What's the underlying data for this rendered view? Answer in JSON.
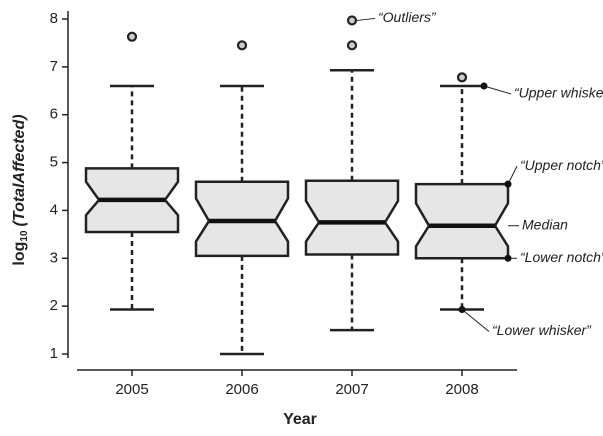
{
  "chart_data": {
    "type": "boxplot",
    "x_label": "Year",
    "y_label": {
      "prefix": "log",
      "subscript": "10",
      "text": "(TotalAffected)"
    },
    "categories": [
      "2005",
      "2006",
      "2007",
      "2008"
    ],
    "boxes": [
      {
        "whisker_low": 1.93,
        "q1": 3.55,
        "notch_low": 3.9,
        "median": 4.22,
        "notch_high": 4.6,
        "q3": 4.88,
        "whisker_high": 6.6,
        "outliers": [
          7.63
        ]
      },
      {
        "whisker_low": 1.0,
        "q1": 3.05,
        "notch_low": 3.35,
        "median": 3.78,
        "notch_high": 4.25,
        "q3": 4.6,
        "whisker_high": 6.6,
        "outliers": [
          7.45
        ]
      },
      {
        "whisker_low": 1.5,
        "q1": 3.08,
        "notch_low": 3.35,
        "median": 3.75,
        "notch_high": 4.2,
        "q3": 4.62,
        "whisker_high": 6.93,
        "outliers": [
          7.45,
          7.97
        ]
      },
      {
        "whisker_low": 1.93,
        "q1": 3.0,
        "notch_low": 3.25,
        "median": 3.68,
        "notch_high": 4.15,
        "q3": 4.55,
        "whisker_high": 6.6,
        "outliers": [
          6.78
        ]
      }
    ],
    "ylim": [
      1,
      8
    ],
    "yticks": [
      1,
      2,
      3,
      4,
      5,
      6,
      7,
      8
    ],
    "box_color": "#e6e6e6",
    "annotations": {
      "outliers": "“Outliers”",
      "upper_whisker": "“Upper whisker”",
      "upper_notch": "“Upper notch”",
      "median": "Median",
      "lower_notch": "“Lower notch”",
      "lower_whisker": "“Lower whisker”"
    }
  }
}
